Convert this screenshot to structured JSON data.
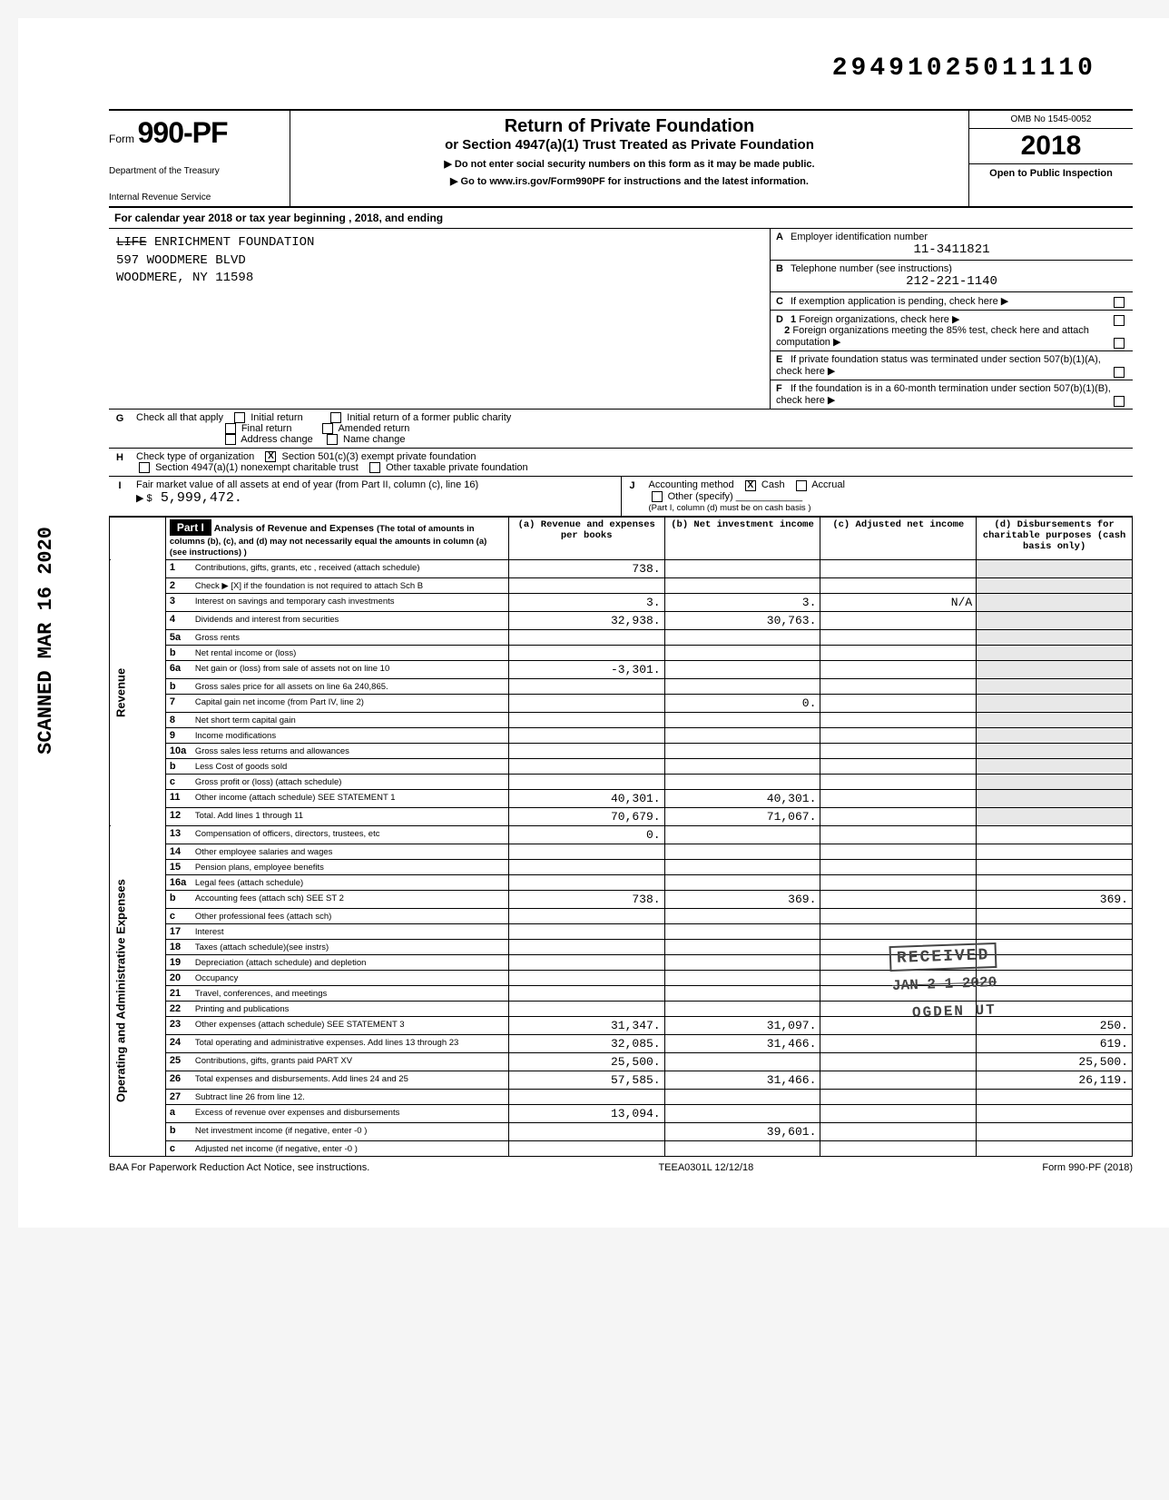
{
  "control_number": "29491025011110",
  "form": {
    "prefix": "Form",
    "number": "990-PF",
    "dept_line1": "Department of the Treasury",
    "dept_line2": "Internal Revenue Service",
    "title_main": "Return of Private Foundation",
    "title_sub": "or Section 4947(a)(1) Trust Treated as Private Foundation",
    "note1": "▶ Do not enter social security numbers on this form as it may be made public.",
    "note2": "▶ Go to www.irs.gov/Form990PF for instructions and the latest information.",
    "omb": "OMB No 1545-0052",
    "year": "2018",
    "open_inspection": "Open to Public Inspection"
  },
  "cal_year": "For calendar year 2018 or tax year beginning                              , 2018, and ending",
  "org": {
    "name_strike": "LIFE",
    "name_rest": " ENRICHMENT FOUNDATION",
    "addr1": "597 WOODMERE BLVD",
    "addr2": "WOODMERE, NY 11598"
  },
  "right_boxes": {
    "A_label": "Employer identification number",
    "A_val": "11-3411821",
    "B_label": "Telephone number (see instructions)",
    "B_val": "212-221-1140",
    "C_label": "If exemption application is pending, check here",
    "D1_label": "Foreign organizations, check here",
    "D2_label": "Foreign organizations meeting the 85% test, check here and attach computation",
    "E_label": "If private foundation status was terminated under section 507(b)(1)(A), check here",
    "F_label": "If the foundation is in a 60-month termination under section 507(b)(1)(B), check here"
  },
  "G": {
    "label": "Check all that apply",
    "opts": [
      "Initial return",
      "Final return",
      "Address change",
      "Initial return of a former public charity",
      "Amended return",
      "Name change"
    ]
  },
  "H": {
    "label": "Check type of organization",
    "opt1": "Section 501(c)(3) exempt private foundation",
    "opt2": "Section 4947(a)(1) nonexempt charitable trust",
    "opt3": "Other taxable private foundation"
  },
  "I": {
    "label": "Fair market value of all assets at end of year (from Part II, column (c), line 16)",
    "value": "5,999,472."
  },
  "J": {
    "label": "Accounting method",
    "cash": "Cash",
    "accrual": "Accrual",
    "other": "Other (specify)",
    "note": "(Part I, column (d) must be on cash basis )"
  },
  "part1": {
    "title": "Part I",
    "heading": "Analysis of Revenue and Expenses",
    "heading_note": "(The total of amounts in columns (b), (c), and (d) may not necessarily equal the amounts in column (a) (see instructions) )",
    "col_a": "(a) Revenue and expenses per books",
    "col_b": "(b) Net investment income",
    "col_c": "(c) Adjusted net income",
    "col_d": "(d) Disbursements for charitable purposes (cash basis only)",
    "revenue_label": "Revenue",
    "expenses_label": "Operating and Administrative Expenses",
    "rows": [
      {
        "n": "1",
        "desc": "Contributions, gifts, grants, etc , received (attach schedule)",
        "a": "738."
      },
      {
        "n": "2",
        "desc": "Check ▶  [X]  if the foundation is not required to attach Sch  B"
      },
      {
        "n": "3",
        "desc": "Interest on savings and temporary cash investments",
        "a": "3.",
        "b": "3.",
        "c": "N/A"
      },
      {
        "n": "4",
        "desc": "Dividends and interest from securities",
        "a": "32,938.",
        "b": "30,763."
      },
      {
        "n": "5a",
        "desc": "Gross rents"
      },
      {
        "n": "b",
        "desc": "Net rental income or (loss)"
      },
      {
        "n": "6a",
        "desc": "Net gain or (loss) from sale of assets not on line 10",
        "a": "-3,301."
      },
      {
        "n": "b",
        "desc": "Gross sales price for all assets on line 6a           240,865."
      },
      {
        "n": "7",
        "desc": "Capital gain net income (from Part IV, line 2)",
        "b": "0."
      },
      {
        "n": "8",
        "desc": "Net short term capital gain"
      },
      {
        "n": "9",
        "desc": "Income modifications"
      },
      {
        "n": "10a",
        "desc": "Gross sales less returns and allowances"
      },
      {
        "n": "b",
        "desc": "Less  Cost of goods sold"
      },
      {
        "n": "c",
        "desc": "Gross profit or (loss) (attach schedule)"
      },
      {
        "n": "11",
        "desc": "Other income (attach schedule)      SEE STATEMENT 1",
        "a": "40,301.",
        "b": "40,301."
      },
      {
        "n": "12",
        "desc": "Total.   Add lines 1 through 11",
        "a": "70,679.",
        "b": "71,067."
      },
      {
        "n": "13",
        "desc": "Compensation of officers, directors, trustees, etc",
        "a": "0."
      },
      {
        "n": "14",
        "desc": "Other employee salaries and wages"
      },
      {
        "n": "15",
        "desc": "Pension plans, employee benefits"
      },
      {
        "n": "16a",
        "desc": "Legal fees (attach schedule)"
      },
      {
        "n": "b",
        "desc": "Accounting fees (attach sch)      SEE ST 2",
        "a": "738.",
        "b": "369.",
        "d": "369."
      },
      {
        "n": "c",
        "desc": "Other professional fees (attach sch)"
      },
      {
        "n": "17",
        "desc": "Interest"
      },
      {
        "n": "18",
        "desc": "Taxes (attach schedule)(see instrs)"
      },
      {
        "n": "19",
        "desc": "Depreciation (attach schedule) and depletion"
      },
      {
        "n": "20",
        "desc": "Occupancy"
      },
      {
        "n": "21",
        "desc": "Travel, conferences, and meetings"
      },
      {
        "n": "22",
        "desc": "Printing and publications"
      },
      {
        "n": "23",
        "desc": "Other expenses (attach schedule)    SEE STATEMENT 3",
        "a": "31,347.",
        "b": "31,097.",
        "d": "250."
      },
      {
        "n": "24",
        "desc": "Total operating and administrative expenses. Add lines 13 through 23",
        "a": "32,085.",
        "b": "31,466.",
        "d": "619."
      },
      {
        "n": "25",
        "desc": "Contributions, gifts, grants paid        PART XV",
        "a": "25,500.",
        "d": "25,500."
      },
      {
        "n": "26",
        "desc": "Total expenses and disbursements. Add lines 24 and 25",
        "a": "57,585.",
        "b": "31,466.",
        "d": "26,119."
      },
      {
        "n": "27",
        "desc": "Subtract line 26 from line 12."
      },
      {
        "n": "a",
        "desc": "Excess of revenue over expenses and disbursements",
        "a": "13,094."
      },
      {
        "n": "b",
        "desc": "Net investment income (if negative, enter -0 )",
        "b": "39,601."
      },
      {
        "n": "c",
        "desc": "Adjusted net income (if negative, enter -0 )"
      }
    ]
  },
  "stamps": {
    "side": "SCANNED MAR 16 2020",
    "received": "RECEIVED",
    "recv_date": "JAN 2 1 2020",
    "recv_loc": "OGDEN  UT"
  },
  "footer": {
    "left": "BAA  For Paperwork Reduction Act Notice, see instructions.",
    "mid": "TEEA0301L  12/12/18",
    "right": "Form 990-PF (2018)"
  }
}
